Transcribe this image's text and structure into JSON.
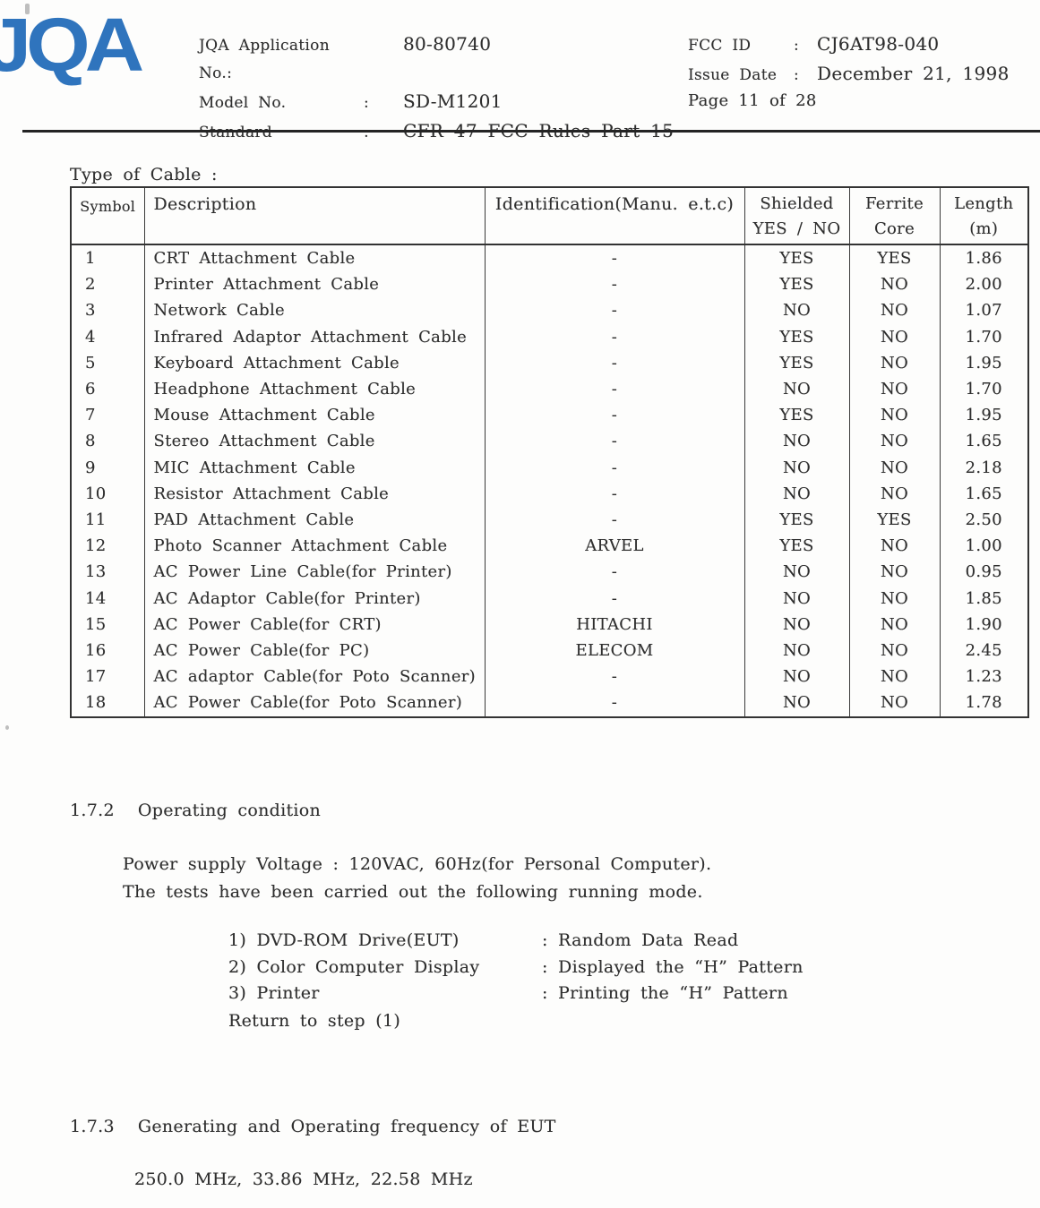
{
  "header": {
    "logo": "JQA",
    "fields_left": [
      {
        "label": "JQA Application No.:",
        "sep": "",
        "value": "80-80740"
      },
      {
        "label": "Model No.",
        "sep": ":",
        "value": "SD-M1201"
      },
      {
        "label": "Standard",
        "sep": ":",
        "value": "CFR 47 FCC Rules Part 15"
      }
    ],
    "fields_right": [
      {
        "label": "FCC ID",
        "sep": ":",
        "value": "CJ6AT98-040"
      },
      {
        "label": "Issue Date",
        "sep": ":",
        "value": "December 21, 1998"
      }
    ],
    "page": "Page 11  of 28"
  },
  "cable_table": {
    "title": "Type of Cable :",
    "head": [
      {
        "l1": "Symbol",
        "l2": ""
      },
      {
        "l1": "Description",
        "l2": ""
      },
      {
        "l1": "Identification(Manu.  e.t.c)",
        "l2": ""
      },
      {
        "l1": "Shielded",
        "l2": "YES / NO"
      },
      {
        "l1": "Ferrite",
        "l2": "Core"
      },
      {
        "l1": "Length",
        "l2": "(m)"
      }
    ],
    "rows": [
      [
        "1",
        "CRT Attachment Cable",
        "-",
        "YES",
        "YES",
        "1.86"
      ],
      [
        "2",
        "Printer Attachment Cable",
        "-",
        "YES",
        "NO",
        "2.00"
      ],
      [
        "3",
        "Network Cable",
        "-",
        "NO",
        "NO",
        "1.07"
      ],
      [
        "4",
        "Infrared Adaptor Attachment Cable",
        "-",
        "YES",
        "NO",
        "1.70"
      ],
      [
        "5",
        "Keyboard Attachment Cable",
        "-",
        "YES",
        "NO",
        "1.95"
      ],
      [
        "6",
        "Headphone Attachment Cable",
        "-",
        "NO",
        "NO",
        "1.70"
      ],
      [
        "7",
        "Mouse Attachment Cable",
        "-",
        "YES",
        "NO",
        "1.95"
      ],
      [
        "8",
        "Stereo Attachment Cable",
        "-",
        "NO",
        "NO",
        "1.65"
      ],
      [
        "9",
        "MIC Attachment Cable",
        "-",
        "NO",
        "NO",
        "2.18"
      ],
      [
        "10",
        "Resistor Attachment Cable",
        "-",
        "NO",
        "NO",
        "1.65"
      ],
      [
        "11",
        "PAD Attachment Cable",
        "-",
        "YES",
        "YES",
        "2.50"
      ],
      [
        "12",
        "Photo Scanner Attachment Cable",
        "ARVEL",
        "YES",
        "NO",
        "1.00"
      ],
      [
        "13",
        "AC Power Line Cable(for Printer)",
        "-",
        "NO",
        "NO",
        "0.95"
      ],
      [
        "14",
        "AC Adaptor Cable(for Printer)",
        "-",
        "NO",
        "NO",
        "1.85"
      ],
      [
        "15",
        "AC Power Cable(for CRT)",
        "HITACHI",
        "NO",
        "NO",
        "1.90"
      ],
      [
        "16",
        "AC Power Cable(for PC)",
        "ELECOM",
        "NO",
        "NO",
        "2.45"
      ],
      [
        "17",
        "AC adaptor Cable(for Poto Scanner)",
        "-",
        "NO",
        "NO",
        "1.23"
      ],
      [
        "18",
        "AC Power Cable(for Poto Scanner)",
        "-",
        "NO",
        "NO",
        "1.78"
      ]
    ]
  },
  "sections": {
    "s172": {
      "number": "1.7.2",
      "title": "Operating condition",
      "para1": "Power supply Voltage : 120VAC, 60Hz(for Personal Computer).",
      "para2": "The tests have been carried out the following running mode.",
      "run_modes": [
        {
          "item": "1) DVD-ROM Drive(EUT)",
          "mode": ": Random Data Read"
        },
        {
          "item": "2) Color Computer Display",
          "mode": ": Displayed the “H” Pattern"
        },
        {
          "item": "3) Printer",
          "mode": ": Printing the “H” Pattern"
        }
      ],
      "footer": "Return to step (1)"
    },
    "s173": {
      "number": "1.7.3",
      "title": "Generating and Operating frequency of EUT",
      "frequencies": "250.0 MHz, 33.86 MHz, 22.58 MHz"
    }
  },
  "colors": {
    "logo_blue": "#2f74bd",
    "ink": "#2e2e2e"
  }
}
